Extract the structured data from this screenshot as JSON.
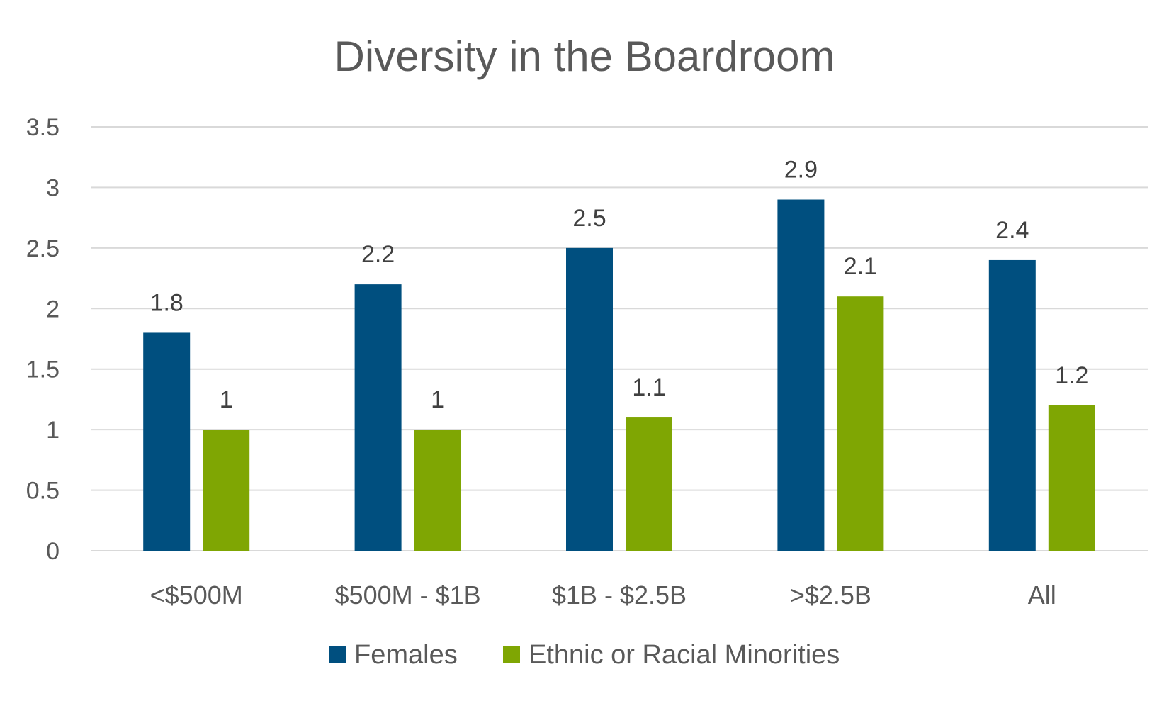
{
  "chart_data": {
    "type": "bar",
    "title": "Diversity in the Boardroom",
    "categories": [
      "<$500M",
      "$500M - $1B",
      "$1B - $2.5B",
      ">$2.5B",
      "All"
    ],
    "series": [
      {
        "name": "Females",
        "color": "#004f7f",
        "values": [
          1.8,
          2.2,
          2.5,
          2.9,
          2.4
        ]
      },
      {
        "name": "Ethnic or Racial Minorities",
        "color": "#7fa603",
        "values": [
          1.0,
          1.0,
          1.1,
          2.1,
          1.2
        ]
      }
    ],
    "data_labels": [
      [
        "1.8",
        "2.2",
        "2.5",
        "2.9",
        "2.4"
      ],
      [
        "1",
        "1",
        "1.1",
        "2.1",
        "1.2"
      ]
    ],
    "ylim": [
      0,
      3.5
    ],
    "yticks": [
      0,
      0.5,
      1,
      1.5,
      2,
      2.5,
      3,
      3.5
    ],
    "ytick_labels": [
      "0",
      "0.5",
      "1",
      "1.5",
      "2",
      "2.5",
      "3",
      "3.5"
    ],
    "xlabel": "",
    "ylabel": "",
    "grid": true,
    "legend_position": "bottom"
  }
}
